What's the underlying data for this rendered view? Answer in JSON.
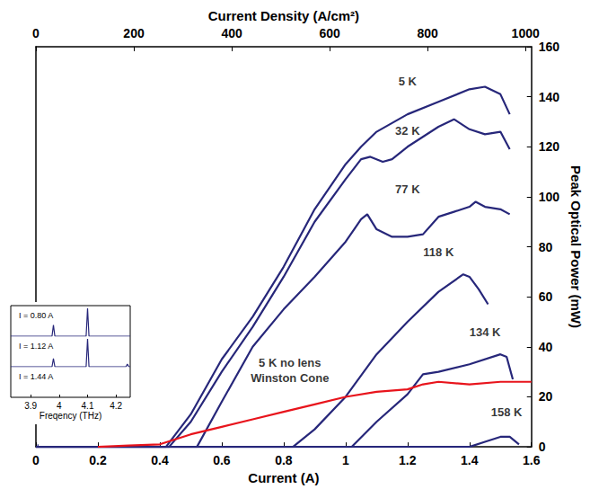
{
  "chart_data": [
    {
      "type": "line",
      "xlabel": "Current (A)",
      "ylabel": "Peak Optical Power (mW)",
      "x2label": "Current Density (A/cm²)",
      "xlim": [
        0,
        1.6
      ],
      "xticks": [
        0,
        0.2,
        0.4,
        0.6,
        0.8,
        1,
        1.2,
        1.4,
        1.6
      ],
      "x2lim": [
        0,
        1012
      ],
      "x2ticks": [
        0,
        200,
        400,
        600,
        800,
        1000
      ],
      "ylim": [
        0,
        160
      ],
      "yticks": [
        0,
        20,
        40,
        60,
        80,
        100,
        120,
        140,
        160
      ],
      "grid": false,
      "series": [
        {
          "name": "5 K",
          "color": "#27277a",
          "x": [
            0,
            0.42,
            0.5,
            0.6,
            0.7,
            0.8,
            0.9,
            1.0,
            1.05,
            1.1,
            1.2,
            1.3,
            1.4,
            1.45,
            1.5,
            1.53
          ],
          "values": [
            0,
            0,
            13,
            35,
            52,
            72,
            95,
            113,
            120,
            126,
            133,
            138,
            143,
            144,
            141,
            133
          ]
        },
        {
          "name": "32 K",
          "color": "#27277a",
          "x": [
            0,
            0.43,
            0.5,
            0.6,
            0.7,
            0.8,
            0.9,
            1.0,
            1.05,
            1.08,
            1.12,
            1.15,
            1.2,
            1.3,
            1.35,
            1.4,
            1.45,
            1.5,
            1.53
          ],
          "values": [
            0,
            0,
            10,
            30,
            48,
            68,
            90,
            107,
            115,
            116,
            114,
            115,
            120,
            128,
            131,
            127,
            125,
            126,
            119
          ]
        },
        {
          "name": "77 K",
          "color": "#27277a",
          "x": [
            0,
            0.52,
            0.6,
            0.7,
            0.8,
            0.9,
            1.0,
            1.05,
            1.07,
            1.1,
            1.15,
            1.2,
            1.25,
            1.3,
            1.35,
            1.4,
            1.42,
            1.45,
            1.5,
            1.53
          ],
          "values": [
            0,
            0,
            18,
            40,
            55,
            68,
            82,
            91,
            93,
            87,
            84,
            84,
            85,
            92,
            94,
            96,
            98,
            96,
            95,
            93
          ]
        },
        {
          "name": "118 K",
          "color": "#27277a",
          "x": [
            0,
            0.83,
            0.9,
            1.0,
            1.1,
            1.2,
            1.3,
            1.38,
            1.4,
            1.43,
            1.46
          ],
          "values": [
            0,
            0,
            7,
            20,
            37,
            50,
            62,
            69,
            68,
            63,
            57
          ]
        },
        {
          "name": "134 K",
          "color": "#27277a",
          "x": [
            0,
            1.02,
            1.1,
            1.2,
            1.25,
            1.3,
            1.4,
            1.5,
            1.52,
            1.54
          ],
          "values": [
            0,
            0,
            10,
            21,
            29,
            30,
            33,
            37,
            36,
            27
          ]
        },
        {
          "name": "158 K",
          "color": "#27277a",
          "x": [
            0,
            1.4,
            1.45,
            1.5,
            1.53,
            1.56
          ],
          "values": [
            0,
            0,
            2,
            4,
            4,
            1
          ]
        },
        {
          "name": "5 K no lens Winston Cone",
          "color": "#e8141c",
          "x": [
            0.2,
            0.3,
            0.4,
            0.5,
            0.6,
            0.7,
            0.8,
            0.9,
            1.0,
            1.1,
            1.2,
            1.25,
            1.3,
            1.4,
            1.5,
            1.6
          ],
          "values": [
            0,
            0.5,
            1,
            5,
            8,
            11,
            14,
            17,
            20,
            22,
            23,
            25,
            26,
            25,
            26,
            26
          ]
        }
      ],
      "annotations": [
        {
          "text": "5 K",
          "x": 1.2,
          "y": 146
        },
        {
          "text": "32 K",
          "x": 1.2,
          "y": 126.5
        },
        {
          "text": "77 K",
          "x": 1.2,
          "y": 103
        },
        {
          "text": "118 K",
          "x": 1.3,
          "y": 78
        },
        {
          "text": "134 K",
          "x": 1.45,
          "y": 46
        },
        {
          "text": "158 K",
          "x": 1.52,
          "y": 14
        },
        {
          "text": "5 K no lens",
          "x": 0.82,
          "y": 33.5
        },
        {
          "text": "Winston Cone",
          "x": 0.82,
          "y": 27.5
        }
      ]
    },
    {
      "type": "line",
      "xlabel": "Freqency (THz)",
      "xlim": [
        3.83,
        4.25
      ],
      "xticks": [
        3.9,
        4,
        4.1,
        4.2
      ],
      "ylim": [
        0,
        1.1
      ],
      "tick_labels": "x",
      "grid": false,
      "series": [
        {
          "name": "I = 0.80 A",
          "color": "#27277a",
          "x": [
            3.83,
            3.855,
            3.86,
            3.865,
            3.975,
            3.98,
            3.985,
            4.095,
            4.1,
            4.105,
            4.215,
            4.22,
            4.225,
            4.25
          ],
          "values": [
            0,
            0,
            0.06,
            0,
            0,
            0.15,
            0,
            0,
            1,
            0,
            0,
            0.1,
            0,
            0
          ]
        },
        {
          "name": "I = 1.12 A",
          "color": "#27277a",
          "x": [
            3.83,
            3.975,
            3.98,
            3.985,
            4.095,
            4.1,
            4.105,
            4.25
          ],
          "values": [
            0,
            0,
            0.4,
            0,
            0,
            1,
            0,
            0
          ]
        },
        {
          "name": "I = 1.44 A",
          "color": "#27277a",
          "x": [
            3.83,
            3.975,
            3.98,
            3.985,
            4.095,
            4.1,
            4.105,
            4.235,
            4.24,
            4.245,
            4.25
          ],
          "values": [
            0,
            0,
            0.3,
            0,
            0,
            1,
            0,
            0,
            0.1,
            0,
            0
          ]
        }
      ]
    }
  ]
}
